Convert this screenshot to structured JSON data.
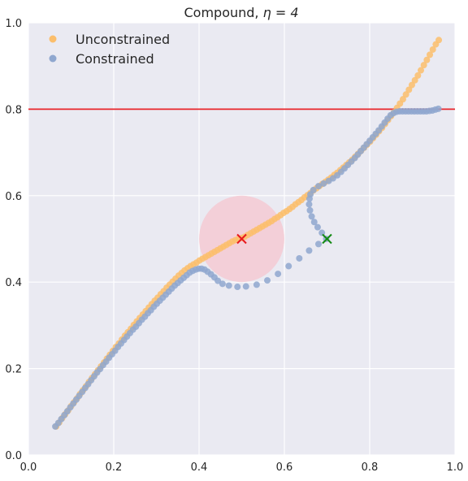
{
  "chart_data": {
    "type": "scatter",
    "title_prefix": "Compound, ",
    "title_math": "η = 4",
    "xlim": [
      0.0,
      1.0
    ],
    "ylim": [
      0.0,
      1.0
    ],
    "xticks": [
      "0.0",
      "0.2",
      "0.4",
      "0.6",
      "0.8",
      "1.0"
    ],
    "yticks": [
      "0.0",
      "0.2",
      "0.4",
      "0.6",
      "0.8",
      "1.0"
    ],
    "grid": true,
    "legend_position": "top-left",
    "hline": {
      "y": 0.8,
      "color": "#e8262b"
    },
    "obstacle": {
      "center": [
        0.5,
        0.5
      ],
      "radius": 0.1,
      "color": "#f5c6cf"
    },
    "markers": [
      {
        "x": 0.5,
        "y": 0.5,
        "color": "#e8191e",
        "shape": "x"
      },
      {
        "x": 0.7,
        "y": 0.5,
        "color": "#148a14",
        "shape": "x"
      }
    ],
    "series": [
      {
        "name": "Unconstrained",
        "color": "#fbbe6c",
        "points": [
          [
            0.065,
            0.066
          ],
          [
            0.072,
            0.075
          ],
          [
            0.079,
            0.085
          ],
          [
            0.086,
            0.094
          ],
          [
            0.093,
            0.103
          ],
          [
            0.1,
            0.113
          ],
          [
            0.107,
            0.122
          ],
          [
            0.114,
            0.131
          ],
          [
            0.121,
            0.141
          ],
          [
            0.128,
            0.15
          ],
          [
            0.135,
            0.159
          ],
          [
            0.142,
            0.169
          ],
          [
            0.149,
            0.178
          ],
          [
            0.156,
            0.187
          ],
          [
            0.163,
            0.196
          ],
          [
            0.17,
            0.205
          ],
          [
            0.177,
            0.214
          ],
          [
            0.184,
            0.223
          ],
          [
            0.191,
            0.232
          ],
          [
            0.198,
            0.241
          ],
          [
            0.205,
            0.25
          ],
          [
            0.212,
            0.258
          ],
          [
            0.219,
            0.267
          ],
          [
            0.226,
            0.276
          ],
          [
            0.233,
            0.284
          ],
          [
            0.24,
            0.292
          ],
          [
            0.247,
            0.301
          ],
          [
            0.254,
            0.309
          ],
          [
            0.261,
            0.317
          ],
          [
            0.268,
            0.325
          ],
          [
            0.275,
            0.333
          ],
          [
            0.282,
            0.341
          ],
          [
            0.289,
            0.349
          ],
          [
            0.296,
            0.357
          ],
          [
            0.303,
            0.364
          ],
          [
            0.31,
            0.372
          ],
          [
            0.317,
            0.379
          ],
          [
            0.324,
            0.387
          ],
          [
            0.331,
            0.394
          ],
          [
            0.338,
            0.401
          ],
          [
            0.345,
            0.408
          ],
          [
            0.352,
            0.415
          ],
          [
            0.359,
            0.421
          ],
          [
            0.366,
            0.427
          ],
          [
            0.373,
            0.432
          ],
          [
            0.38,
            0.437
          ],
          [
            0.387,
            0.441
          ],
          [
            0.394,
            0.445
          ],
          [
            0.401,
            0.45
          ],
          [
            0.408,
            0.454
          ],
          [
            0.415,
            0.458
          ],
          [
            0.422,
            0.462
          ],
          [
            0.429,
            0.466
          ],
          [
            0.436,
            0.47
          ],
          [
            0.443,
            0.474
          ],
          [
            0.45,
            0.478
          ],
          [
            0.457,
            0.482
          ],
          [
            0.464,
            0.486
          ],
          [
            0.471,
            0.49
          ],
          [
            0.478,
            0.494
          ],
          [
            0.485,
            0.497
          ],
          [
            0.492,
            0.5
          ],
          [
            0.5,
            0.502
          ],
          [
            0.507,
            0.505
          ],
          [
            0.514,
            0.509
          ],
          [
            0.521,
            0.513
          ],
          [
            0.528,
            0.517
          ],
          [
            0.535,
            0.521
          ],
          [
            0.542,
            0.525
          ],
          [
            0.549,
            0.529
          ],
          [
            0.556,
            0.533
          ],
          [
            0.563,
            0.537
          ],
          [
            0.57,
            0.541
          ],
          [
            0.577,
            0.546
          ],
          [
            0.584,
            0.55
          ],
          [
            0.591,
            0.555
          ],
          [
            0.598,
            0.56
          ],
          [
            0.605,
            0.564
          ],
          [
            0.612,
            0.569
          ],
          [
            0.619,
            0.574
          ],
          [
            0.626,
            0.58
          ],
          [
            0.633,
            0.585
          ],
          [
            0.64,
            0.59
          ],
          [
            0.647,
            0.596
          ],
          [
            0.654,
            0.601
          ],
          [
            0.661,
            0.606
          ],
          [
            0.668,
            0.612
          ],
          [
            0.675,
            0.617
          ],
          [
            0.682,
            0.622
          ],
          [
            0.689,
            0.627
          ],
          [
            0.696,
            0.632
          ],
          [
            0.703,
            0.637
          ],
          [
            0.71,
            0.642
          ],
          [
            0.717,
            0.648
          ],
          [
            0.724,
            0.653
          ],
          [
            0.731,
            0.659
          ],
          [
            0.738,
            0.665
          ],
          [
            0.745,
            0.671
          ],
          [
            0.752,
            0.677
          ],
          [
            0.759,
            0.683
          ],
          [
            0.766,
            0.69
          ],
          [
            0.773,
            0.697
          ],
          [
            0.78,
            0.704
          ],
          [
            0.787,
            0.711
          ],
          [
            0.794,
            0.718
          ],
          [
            0.801,
            0.725
          ],
          [
            0.808,
            0.733
          ],
          [
            0.815,
            0.741
          ],
          [
            0.822,
            0.749
          ],
          [
            0.829,
            0.757
          ],
          [
            0.836,
            0.766
          ],
          [
            0.843,
            0.775
          ],
          [
            0.85,
            0.784
          ],
          [
            0.857,
            0.793
          ],
          [
            0.864,
            0.803
          ],
          [
            0.871,
            0.813
          ],
          [
            0.878,
            0.823
          ],
          [
            0.885,
            0.834
          ],
          [
            0.892,
            0.845
          ],
          [
            0.899,
            0.856
          ],
          [
            0.906,
            0.867
          ],
          [
            0.913,
            0.878
          ],
          [
            0.92,
            0.89
          ],
          [
            0.927,
            0.902
          ],
          [
            0.934,
            0.914
          ],
          [
            0.941,
            0.926
          ],
          [
            0.948,
            0.938
          ],
          [
            0.955,
            0.95
          ],
          [
            0.962,
            0.96
          ]
        ]
      },
      {
        "name": "Constrained",
        "color": "#8fa7cf",
        "points": [
          [
            0.063,
            0.066
          ],
          [
            0.07,
            0.074
          ],
          [
            0.077,
            0.083
          ],
          [
            0.084,
            0.092
          ],
          [
            0.091,
            0.101
          ],
          [
            0.098,
            0.11
          ],
          [
            0.105,
            0.119
          ],
          [
            0.112,
            0.128
          ],
          [
            0.119,
            0.137
          ],
          [
            0.126,
            0.146
          ],
          [
            0.133,
            0.155
          ],
          [
            0.14,
            0.164
          ],
          [
            0.147,
            0.173
          ],
          [
            0.154,
            0.182
          ],
          [
            0.161,
            0.191
          ],
          [
            0.168,
            0.199
          ],
          [
            0.175,
            0.208
          ],
          [
            0.182,
            0.216
          ],
          [
            0.189,
            0.225
          ],
          [
            0.196,
            0.233
          ],
          [
            0.203,
            0.241
          ],
          [
            0.21,
            0.25
          ],
          [
            0.217,
            0.258
          ],
          [
            0.224,
            0.266
          ],
          [
            0.231,
            0.274
          ],
          [
            0.238,
            0.282
          ],
          [
            0.245,
            0.29
          ],
          [
            0.252,
            0.297
          ],
          [
            0.259,
            0.305
          ],
          [
            0.266,
            0.313
          ],
          [
            0.273,
            0.32
          ],
          [
            0.28,
            0.328
          ],
          [
            0.287,
            0.335
          ],
          [
            0.294,
            0.343
          ],
          [
            0.301,
            0.35
          ],
          [
            0.308,
            0.357
          ],
          [
            0.315,
            0.364
          ],
          [
            0.322,
            0.371
          ],
          [
            0.329,
            0.378
          ],
          [
            0.336,
            0.385
          ],
          [
            0.343,
            0.392
          ],
          [
            0.35,
            0.398
          ],
          [
            0.357,
            0.404
          ],
          [
            0.364,
            0.41
          ],
          [
            0.371,
            0.416
          ],
          [
            0.378,
            0.422
          ],
          [
            0.385,
            0.426
          ],
          [
            0.392,
            0.429
          ],
          [
            0.399,
            0.431
          ],
          [
            0.406,
            0.431
          ],
          [
            0.413,
            0.429
          ],
          [
            0.42,
            0.424
          ],
          [
            0.428,
            0.418
          ],
          [
            0.436,
            0.411
          ],
          [
            0.444,
            0.403
          ],
          [
            0.455,
            0.396
          ],
          [
            0.47,
            0.392
          ],
          [
            0.49,
            0.389
          ],
          [
            0.51,
            0.39
          ],
          [
            0.535,
            0.394
          ],
          [
            0.56,
            0.404
          ],
          [
            0.585,
            0.419
          ],
          [
            0.61,
            0.437
          ],
          [
            0.635,
            0.455
          ],
          [
            0.658,
            0.473
          ],
          [
            0.68,
            0.488
          ],
          [
            0.698,
            0.5
          ],
          [
            0.688,
            0.514
          ],
          [
            0.678,
            0.527
          ],
          [
            0.67,
            0.539
          ],
          [
            0.664,
            0.552
          ],
          [
            0.66,
            0.566
          ],
          [
            0.658,
            0.58
          ],
          [
            0.659,
            0.593
          ],
          [
            0.661,
            0.603
          ],
          [
            0.668,
            0.613
          ],
          [
            0.68,
            0.622
          ],
          [
            0.692,
            0.628
          ],
          [
            0.704,
            0.634
          ],
          [
            0.714,
            0.64
          ],
          [
            0.724,
            0.647
          ],
          [
            0.733,
            0.655
          ],
          [
            0.741,
            0.663
          ],
          [
            0.749,
            0.671
          ],
          [
            0.757,
            0.679
          ],
          [
            0.765,
            0.687
          ],
          [
            0.772,
            0.695
          ],
          [
            0.779,
            0.703
          ],
          [
            0.786,
            0.711
          ],
          [
            0.793,
            0.719
          ],
          [
            0.8,
            0.727
          ],
          [
            0.807,
            0.735
          ],
          [
            0.814,
            0.743
          ],
          [
            0.821,
            0.751
          ],
          [
            0.828,
            0.76
          ],
          [
            0.835,
            0.769
          ],
          [
            0.842,
            0.778
          ],
          [
            0.849,
            0.786
          ],
          [
            0.856,
            0.791
          ],
          [
            0.863,
            0.794
          ],
          [
            0.87,
            0.795
          ],
          [
            0.877,
            0.795
          ],
          [
            0.884,
            0.795
          ],
          [
            0.891,
            0.795
          ],
          [
            0.898,
            0.795
          ],
          [
            0.905,
            0.795
          ],
          [
            0.912,
            0.795
          ],
          [
            0.919,
            0.795
          ],
          [
            0.926,
            0.795
          ],
          [
            0.933,
            0.795
          ],
          [
            0.94,
            0.796
          ],
          [
            0.947,
            0.797
          ],
          [
            0.954,
            0.799
          ],
          [
            0.961,
            0.801
          ]
        ]
      }
    ]
  }
}
